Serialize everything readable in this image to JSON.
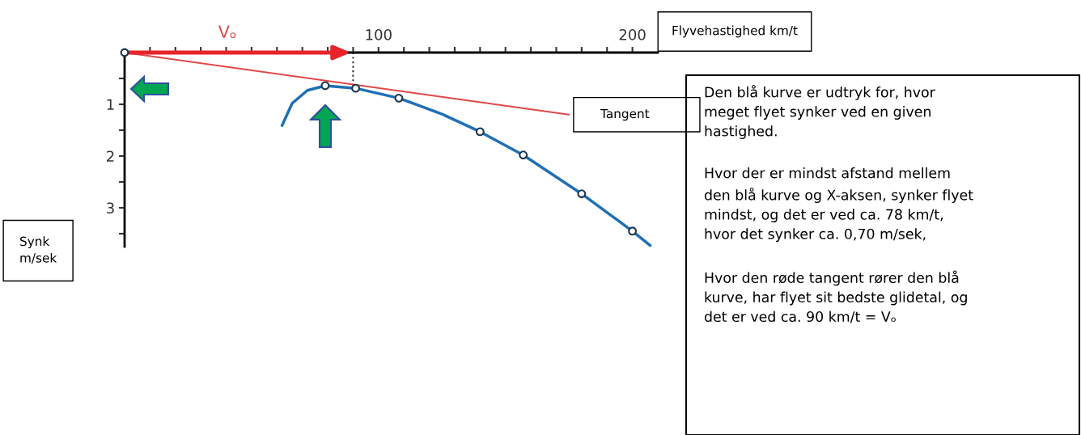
{
  "chart_data": {
    "type": "line",
    "xlabel": "Flyvehastighed km/t",
    "ylabel": "Synk\nm/sek",
    "xlim": [
      0,
      210
    ],
    "ylim": [
      3.75,
      0
    ],
    "xticks": [
      {
        "value": 10,
        "label": null
      },
      {
        "value": 20,
        "label": null
      },
      {
        "value": 30,
        "label": null
      },
      {
        "value": 40,
        "label": null
      },
      {
        "value": 50,
        "label": null
      },
      {
        "value": 60,
        "label": null
      },
      {
        "value": 70,
        "label": null
      },
      {
        "value": 80,
        "label": null
      },
      {
        "value": 90,
        "label": null
      },
      100,
      {
        "value": 110,
        "label": null
      },
      {
        "value": 120,
        "label": null
      },
      {
        "value": 130,
        "label": null
      },
      {
        "value": 140,
        "label": null
      },
      {
        "value": 150,
        "label": null
      },
      {
        "value": 160,
        "label": null
      },
      {
        "value": 170,
        "label": null
      },
      {
        "value": 180,
        "label": null
      },
      {
        "value": 190,
        "label": null
      },
      200
    ],
    "yticks": [
      {
        "value": 0.5,
        "label": null
      },
      1,
      {
        "value": 1.5,
        "label": null
      },
      2,
      {
        "value": 2.5,
        "label": null
      },
      3,
      {
        "value": 3.5,
        "label": null
      }
    ],
    "series": [
      {
        "color": "#1f6fb5",
        "x": [
          62,
          66,
          72,
          79,
          91,
          108,
          125,
          140,
          157,
          180,
          200,
          207
        ],
        "values": [
          1.41,
          0.98,
          0.73,
          0.64,
          0.69,
          0.88,
          1.19,
          1.53,
          1.98,
          2.73,
          3.45,
          3.73
        ]
      },
      {
        "type": "scatter",
        "color": "#1a3550",
        "marker": "circle",
        "x": [
          0,
          79,
          91,
          108,
          140,
          157,
          180,
          200
        ],
        "values": [
          0,
          0.64,
          0.69,
          0.88,
          1.53,
          1.98,
          2.73,
          3.45
        ]
      },
      {
        "type": "line",
        "color": "#e04848",
        "x": [
          0,
          175
        ],
        "values": [
          0,
          1.2
        ]
      }
    ],
    "ref_lines": [
      {
        "axis": "x",
        "value": 90,
        "color": "#333333",
        "line_style": "dotted"
      }
    ],
    "annotations": [
      "Vₒ",
      {
        "text": "Tangent",
        "x": 175,
        "y": 1.2
      },
      "Den blå kurve er udtryk for, hvor\nmeget flyet synker ved en given\nhastighed.",
      "Hvor der er mindst afstand mellem\nden blå kurve og X-aksen, synker flyet\nmindst, og det er ved ca. 78 km/t,\nhvor det synker ca. 0,70 m/sek,",
      "Hvor den røde tangent rører den blå\nkurve, har flyet sit bedste glidetal, og\ndet er ved ca. 90 km/t = Vₒ"
    ],
    "grid": false
  }
}
